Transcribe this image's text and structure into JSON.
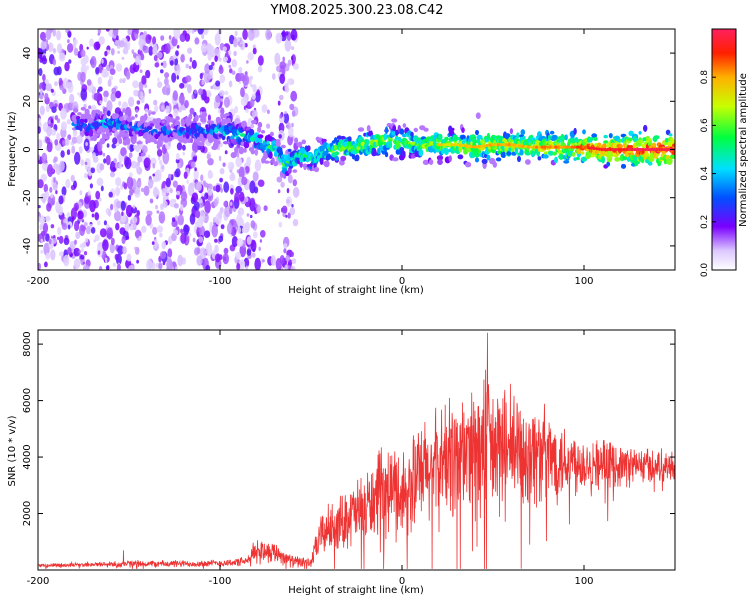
{
  "chart_data": [
    {
      "type": "heatmap",
      "title": "YM08.2025.300.23.08.C42",
      "xlabel": "Height of straight line (km)",
      "ylabel": "Frequency (Hz)",
      "xlim": [
        -200,
        150
      ],
      "ylim": [
        -50,
        50
      ],
      "xticks": [
        -200,
        -100,
        0,
        100
      ],
      "yticks": [
        -40,
        -20,
        0,
        20,
        40
      ],
      "trace": {
        "x": [
          -170,
          -160,
          -150,
          -140,
          -130,
          -120,
          -110,
          -100,
          -90,
          -80,
          -70,
          -65,
          -60,
          -55,
          -50,
          -45,
          -40,
          -35,
          -30,
          -25,
          -20,
          -15,
          -10,
          -5,
          0,
          10,
          20,
          30,
          40,
          50,
          60,
          70,
          80,
          90,
          100,
          110,
          120,
          130,
          140,
          150
        ],
        "y": [
          10,
          12,
          9,
          8,
          8,
          7,
          8,
          8,
          6,
          4,
          0,
          -6,
          -4,
          -2,
          -4,
          -1,
          -1,
          0,
          1,
          1,
          2,
          3,
          4,
          3,
          3,
          2,
          2,
          2,
          1,
          2,
          2,
          1,
          1,
          1,
          1,
          0,
          0,
          0,
          0,
          0
        ],
        "amp": [
          0.3,
          0.4,
          0.3,
          0.3,
          0.3,
          0.3,
          0.35,
          0.4,
          0.45,
          0.45,
          0.5,
          0.5,
          0.5,
          0.5,
          0.5,
          0.55,
          0.55,
          0.6,
          0.6,
          0.6,
          0.6,
          0.65,
          0.65,
          0.6,
          0.6,
          0.6,
          0.65,
          0.65,
          0.7,
          0.7,
          0.7,
          0.7,
          0.75,
          0.75,
          0.8,
          0.85,
          0.85,
          0.9,
          0.9,
          0.9
        ]
      },
      "colorbar": {
        "label": "Normalized spectral amplitude",
        "range": [
          0,
          1
        ],
        "ticks": [
          "0.0",
          "0.2",
          "0.4",
          "0.6",
          "0.8"
        ],
        "tick_values": [
          0,
          0.2,
          0.4,
          0.6,
          0.8
        ]
      }
    },
    {
      "type": "line",
      "xlabel": "Height of straight line (km)",
      "ylabel": "SNR (10 * v/v)",
      "xlim": [
        -200,
        150
      ],
      "ylim": [
        0,
        8500
      ],
      "xticks": [
        -200,
        -100,
        0,
        100
      ],
      "yticks": [
        2000,
        4000,
        6000,
        8000
      ],
      "series": [
        {
          "name": "SNR",
          "color": "#ee3333",
          "envelope": {
            "x": [
              -200,
              -170,
              -155,
              -150,
              -120,
              -100,
              -85,
              -80,
              -78,
              -70,
              -60,
              -50,
              -45,
              -40,
              -35,
              -30,
              -25,
              -20,
              -15,
              -10,
              -5,
              0,
              10,
              20,
              25,
              30,
              40,
              45,
              50,
              60,
              70,
              80,
              90,
              100,
              120,
              140,
              150
            ],
            "mean": [
              150,
              200,
              200,
              220,
              220,
              240,
              300,
              700,
              700,
              650,
              300,
              250,
              1200,
              1500,
              1600,
              1900,
              2000,
              2200,
              2500,
              2700,
              2900,
              2700,
              3300,
              3700,
              3900,
              4100,
              4200,
              4300,
              4200,
              4200,
              4200,
              4000,
              3900,
              3800,
              3700,
              3700,
              3700
            ],
            "spread": [
              80,
              100,
              150,
              150,
              150,
              150,
              200,
              600,
              500,
              450,
              250,
              200,
              900,
              1000,
              1100,
              1300,
              1400,
              1500,
              1700,
              1800,
              1900,
              2000,
              2200,
              2400,
              2600,
              2800,
              3000,
              3200,
              3000,
              2600,
              2400,
              2000,
              1600,
              1200,
              900,
              700,
              600
            ]
          },
          "peak": {
            "x": 47,
            "y": 8400
          },
          "spikes": [
            {
              "x": -153,
              "y": 700
            }
          ]
        }
      ]
    }
  ]
}
